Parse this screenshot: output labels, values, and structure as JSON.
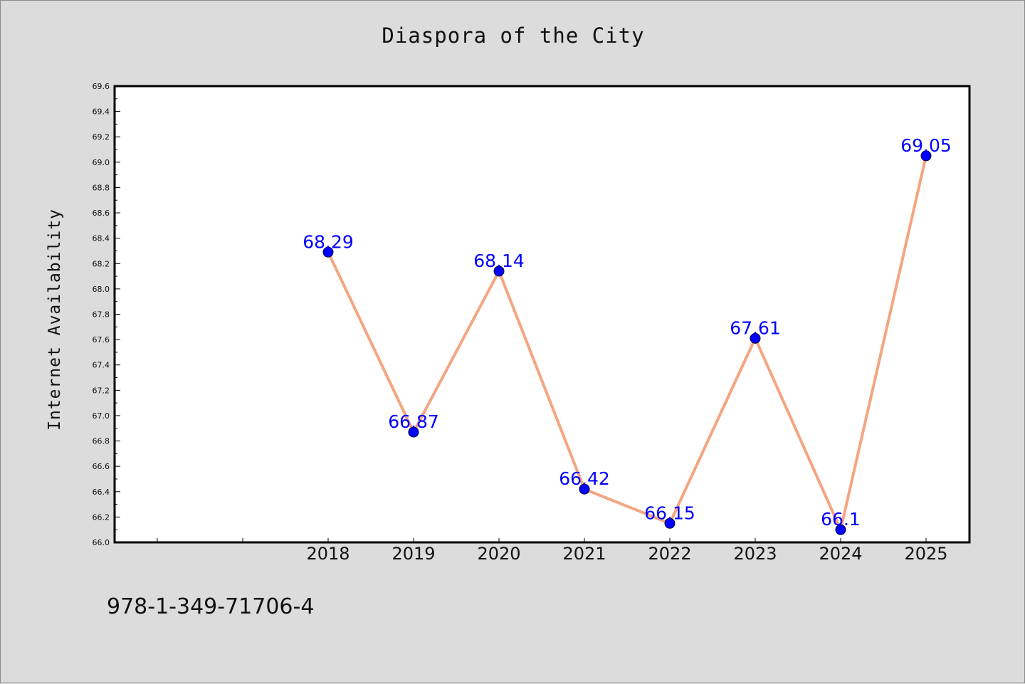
{
  "chart_data": {
    "type": "line",
    "title": "Diaspora of the City",
    "xlabel": "",
    "ylabel": "Internet Availability",
    "categories": [
      "2018",
      "2019",
      "2020",
      "2021",
      "2022",
      "2023",
      "2024",
      "2025"
    ],
    "series": [
      {
        "values": [
          68.29,
          66.87,
          68.14,
          66.42,
          66.15,
          67.61,
          66.1,
          69.05
        ],
        "data_labels": [
          "68.29",
          "66.87",
          "68.14",
          "66.42",
          "66.15",
          "67.61",
          "66.1",
          "69.05"
        ]
      }
    ],
    "ylim": [
      66.0,
      69.6
    ],
    "yticks": [
      "66.0",
      "66.2",
      "66.4",
      "66.6",
      "66.8",
      "67.0",
      "67.2",
      "67.4",
      "67.6",
      "67.8",
      "68.0",
      "68.2",
      "68.4",
      "68.6",
      "68.8",
      "69.0",
      "69.2",
      "69.4",
      "69.6"
    ],
    "grid": false,
    "line_color": "#f4a582",
    "marker_color": "#0000ff",
    "label_color": "#0000ff"
  },
  "footer_text": "978-1-349-71706-4"
}
